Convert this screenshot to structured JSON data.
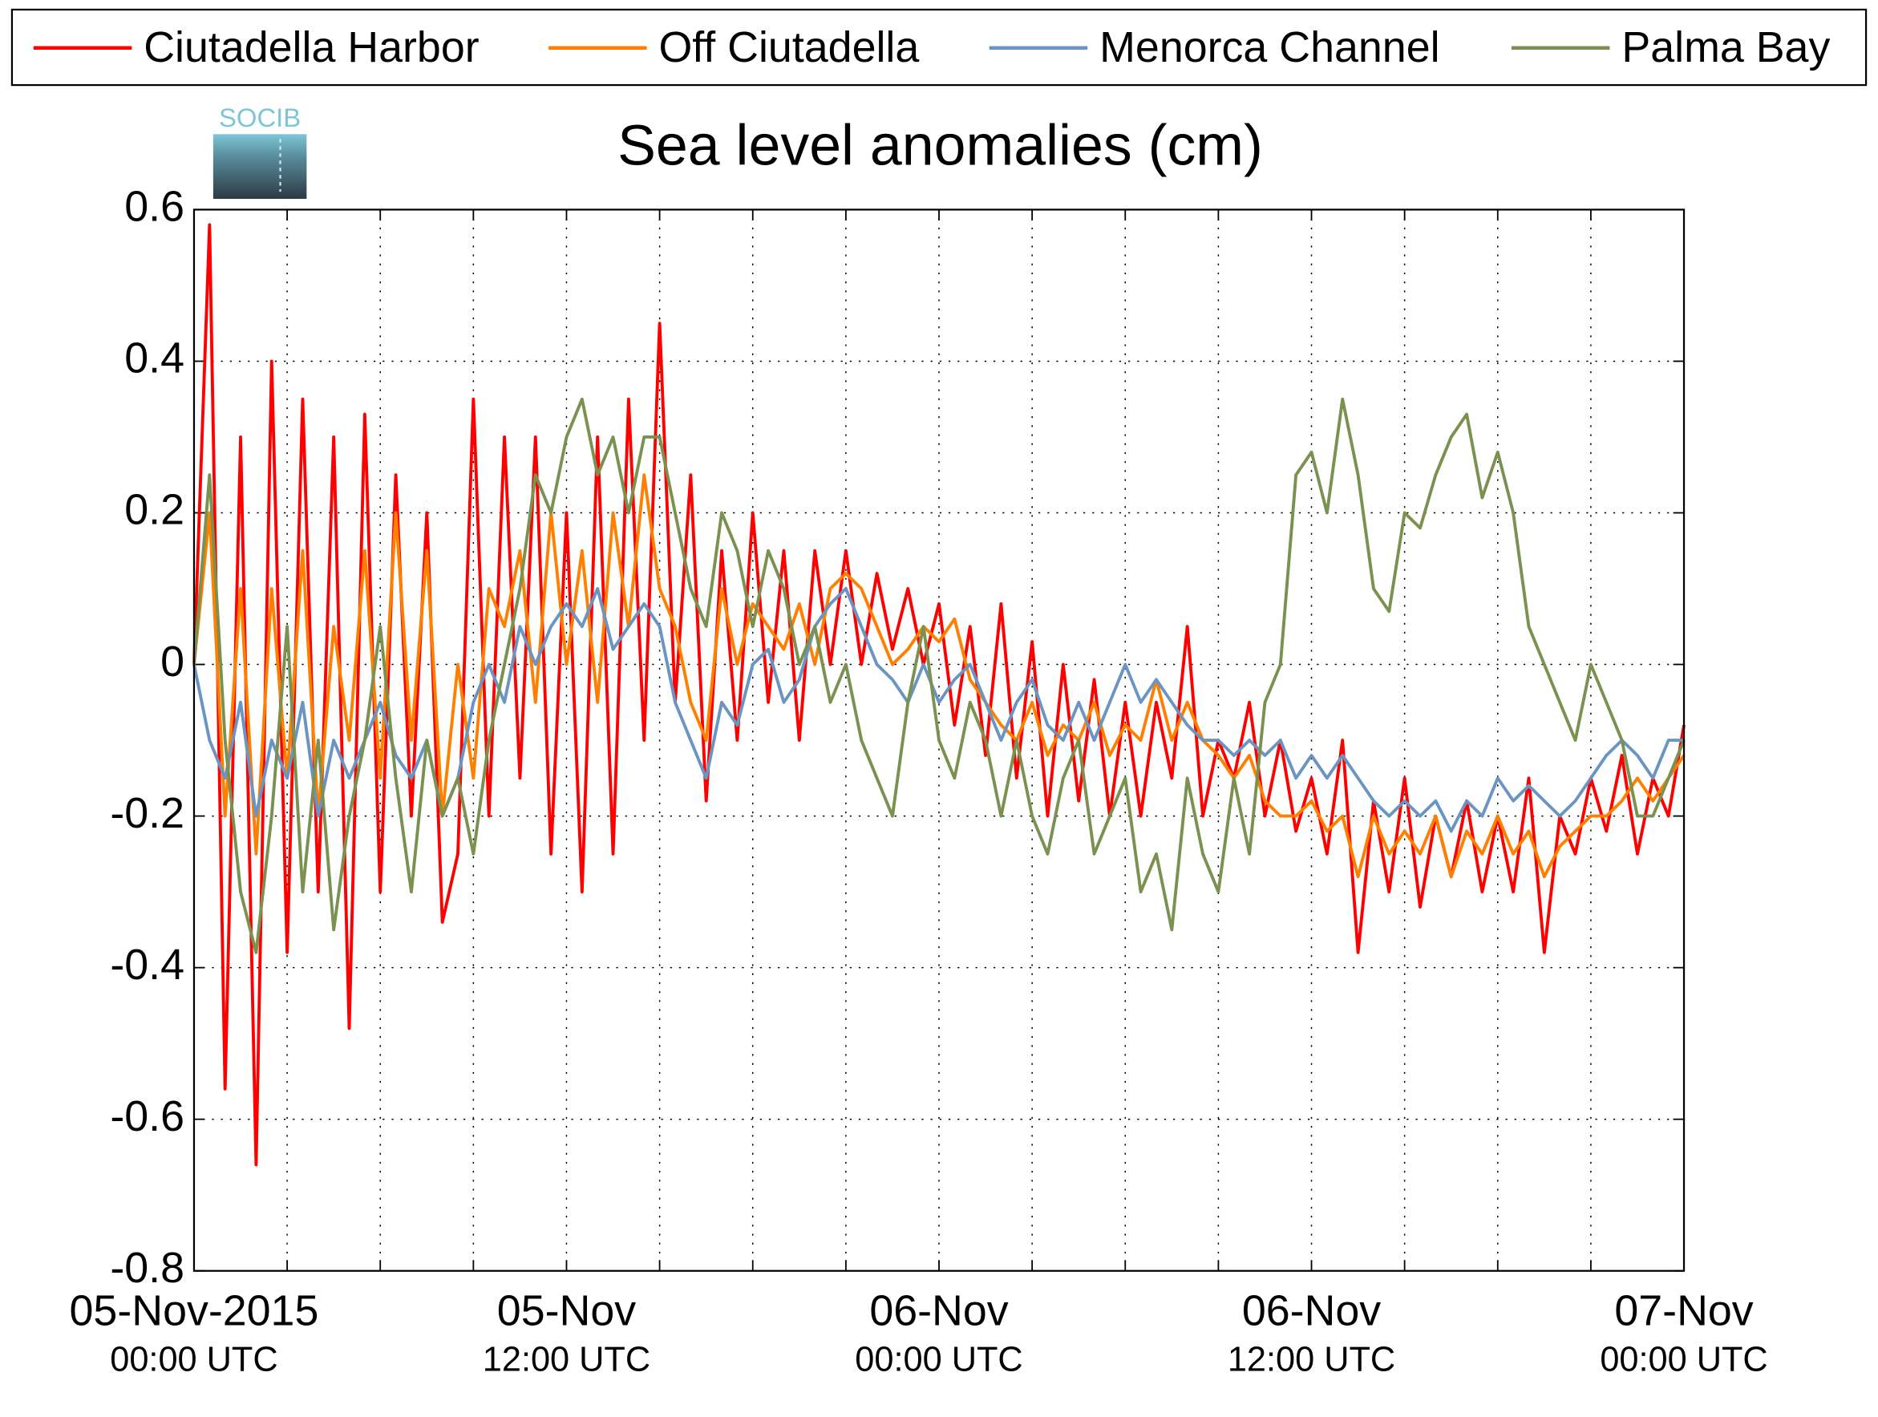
{
  "chart_data": {
    "type": "line",
    "title": "Sea level anomalies (cm)",
    "logo": "SOCIB",
    "legend": "top",
    "grid": true,
    "x": [
      "2015-11-05T00:00",
      "2015-11-05T00:30",
      "2015-11-05T01:00",
      "2015-11-05T01:30",
      "2015-11-05T02:00",
      "2015-11-05T02:30",
      "2015-11-05T03:00",
      "2015-11-05T03:30",
      "2015-11-05T04:00",
      "2015-11-05T04:30",
      "2015-11-05T05:00",
      "2015-11-05T05:30",
      "2015-11-05T06:00",
      "2015-11-05T06:30",
      "2015-11-05T07:00",
      "2015-11-05T07:30",
      "2015-11-05T08:00",
      "2015-11-05T08:30",
      "2015-11-05T09:00",
      "2015-11-05T09:30",
      "2015-11-05T10:00",
      "2015-11-05T10:30",
      "2015-11-05T11:00",
      "2015-11-05T11:30",
      "2015-11-05T12:00",
      "2015-11-05T12:30",
      "2015-11-05T13:00",
      "2015-11-05T13:30",
      "2015-11-05T14:00",
      "2015-11-05T14:30",
      "2015-11-05T15:00",
      "2015-11-05T15:30",
      "2015-11-05T16:00",
      "2015-11-05T16:30",
      "2015-11-05T17:00",
      "2015-11-05T17:30",
      "2015-11-05T18:00",
      "2015-11-05T18:30",
      "2015-11-05T19:00",
      "2015-11-05T19:30",
      "2015-11-05T20:00",
      "2015-11-05T20:30",
      "2015-11-05T21:00",
      "2015-11-05T21:30",
      "2015-11-05T22:00",
      "2015-11-05T22:30",
      "2015-11-05T23:00",
      "2015-11-05T23:30",
      "2015-11-06T00:00",
      "2015-11-06T00:30",
      "2015-11-06T01:00",
      "2015-11-06T01:30",
      "2015-11-06T02:00",
      "2015-11-06T02:30",
      "2015-11-06T03:00",
      "2015-11-06T03:30",
      "2015-11-06T04:00",
      "2015-11-06T04:30",
      "2015-11-06T05:00",
      "2015-11-06T05:30",
      "2015-11-06T06:00",
      "2015-11-06T06:30",
      "2015-11-06T07:00",
      "2015-11-06T07:30",
      "2015-11-06T08:00",
      "2015-11-06T08:30",
      "2015-11-06T09:00",
      "2015-11-06T09:30",
      "2015-11-06T10:00",
      "2015-11-06T10:30",
      "2015-11-06T11:00",
      "2015-11-06T11:30",
      "2015-11-06T12:00",
      "2015-11-06T12:30",
      "2015-11-06T13:00",
      "2015-11-06T13:30",
      "2015-11-06T14:00",
      "2015-11-06T14:30",
      "2015-11-06T15:00",
      "2015-11-06T15:30",
      "2015-11-06T16:00",
      "2015-11-06T16:30",
      "2015-11-06T17:00",
      "2015-11-06T17:30",
      "2015-11-06T18:00",
      "2015-11-06T18:30",
      "2015-11-06T19:00",
      "2015-11-06T19:30",
      "2015-11-06T20:00",
      "2015-11-06T20:30",
      "2015-11-06T21:00",
      "2015-11-06T21:30",
      "2015-11-06T22:00",
      "2015-11-06T22:30",
      "2015-11-06T23:00",
      "2015-11-06T23:30",
      "2015-11-07T00:00"
    ],
    "xlim": [
      "2015-11-05T00:00",
      "2015-11-07T00:00"
    ],
    "xticks": [
      {
        "value": "2015-11-05T00:00",
        "label": "05-Nov-2015",
        "sublabel": "00:00 UTC"
      },
      "2015-11-05T03:00",
      "2015-11-05T06:00",
      "2015-11-05T09:00",
      {
        "value": "2015-11-05T12:00",
        "label": "05-Nov",
        "sublabel": "12:00 UTC"
      },
      "2015-11-05T15:00",
      "2015-11-05T18:00",
      "2015-11-05T21:00",
      {
        "value": "2015-11-06T00:00",
        "label": "06-Nov",
        "sublabel": "00:00 UTC"
      },
      "2015-11-06T03:00",
      "2015-11-06T06:00",
      "2015-11-06T09:00",
      {
        "value": "2015-11-06T12:00",
        "label": "06-Nov",
        "sublabel": "12:00 UTC"
      },
      "2015-11-06T15:00",
      "2015-11-06T18:00",
      "2015-11-06T21:00",
      {
        "value": "2015-11-07T00:00",
        "label": "07-Nov",
        "sublabel": "00:00 UTC"
      }
    ],
    "ylim": [
      -0.8,
      0.6
    ],
    "yticks": [
      -0.8,
      -0.6,
      -0.4,
      -0.2,
      0,
      0.2,
      0.4,
      0.6
    ],
    "series": [
      {
        "name": "Ciutadella Harbor",
        "color": "#ff0000",
        "values": [
          0,
          0.58,
          -0.56,
          0.3,
          -0.66,
          0.4,
          -0.38,
          0.35,
          -0.3,
          0.3,
          -0.48,
          0.33,
          -0.3,
          0.25,
          -0.2,
          0.2,
          -0.34,
          -0.25,
          0.35,
          -0.2,
          0.3,
          -0.15,
          0.3,
          -0.25,
          0.2,
          -0.3,
          0.3,
          -0.25,
          0.35,
          -0.1,
          0.45,
          -0.05,
          0.25,
          -0.18,
          0.15,
          -0.1,
          0.2,
          -0.05,
          0.15,
          -0.1,
          0.15,
          0,
          0.15,
          0,
          0.12,
          0.02,
          0.1,
          0,
          0.08,
          -0.08,
          0.05,
          -0.12,
          0.08,
          -0.15,
          0.03,
          -0.2,
          0,
          -0.18,
          -0.02,
          -0.2,
          -0.05,
          -0.2,
          -0.05,
          -0.15,
          0.05,
          -0.2,
          -0.1,
          -0.15,
          -0.05,
          -0.2,
          -0.1,
          -0.22,
          -0.15,
          -0.25,
          -0.1,
          -0.38,
          -0.18,
          -0.3,
          -0.15,
          -0.32,
          -0.2,
          -0.28,
          -0.18,
          -0.3,
          -0.2,
          -0.3,
          -0.15,
          -0.38,
          -0.2,
          -0.25,
          -0.15,
          -0.22,
          -0.12,
          -0.25,
          -0.15,
          -0.2,
          -0.08
        ]
      },
      {
        "name": "Off Ciutadella",
        "color": "#ff8000",
        "values": [
          0,
          0.2,
          -0.2,
          0.1,
          -0.25,
          0.1,
          -0.15,
          0.15,
          -0.2,
          0.05,
          -0.1,
          0.15,
          -0.15,
          0.2,
          -0.1,
          0.15,
          -0.2,
          0,
          -0.15,
          0.1,
          0.05,
          0.15,
          -0.05,
          0.2,
          0,
          0.15,
          -0.05,
          0.2,
          0.05,
          0.25,
          0.1,
          0.05,
          -0.05,
          -0.1,
          0.1,
          0,
          0.08,
          0.05,
          0.02,
          0.08,
          0,
          0.1,
          0.12,
          0.1,
          0.05,
          0,
          0.02,
          0.05,
          0.03,
          0.06,
          -0.02,
          -0.05,
          -0.08,
          -0.1,
          -0.05,
          -0.12,
          -0.08,
          -0.1,
          -0.05,
          -0.12,
          -0.08,
          -0.1,
          -0.02,
          -0.1,
          -0.05,
          -0.1,
          -0.12,
          -0.15,
          -0.12,
          -0.18,
          -0.2,
          -0.2,
          -0.18,
          -0.22,
          -0.2,
          -0.28,
          -0.2,
          -0.25,
          -0.22,
          -0.25,
          -0.2,
          -0.28,
          -0.22,
          -0.25,
          -0.2,
          -0.25,
          -0.22,
          -0.28,
          -0.24,
          -0.22,
          -0.2,
          -0.2,
          -0.18,
          -0.15,
          -0.18,
          -0.15,
          -0.12
        ]
      },
      {
        "name": "Menorca Channel",
        "color": "#6a95c2",
        "values": [
          0,
          -0.1,
          -0.15,
          -0.05,
          -0.2,
          -0.1,
          -0.15,
          -0.05,
          -0.2,
          -0.1,
          -0.15,
          -0.1,
          -0.05,
          -0.12,
          -0.15,
          -0.1,
          -0.2,
          -0.15,
          -0.05,
          0,
          -0.05,
          0.05,
          0,
          0.05,
          0.08,
          0.05,
          0.1,
          0.02,
          0.05,
          0.08,
          0.05,
          -0.05,
          -0.1,
          -0.15,
          -0.05,
          -0.08,
          0,
          0.02,
          -0.05,
          -0.02,
          0.05,
          0.08,
          0.1,
          0.05,
          0,
          -0.02,
          -0.05,
          0,
          -0.05,
          -0.02,
          0,
          -0.05,
          -0.1,
          -0.05,
          -0.02,
          -0.08,
          -0.1,
          -0.05,
          -0.1,
          -0.05,
          0,
          -0.05,
          -0.02,
          -0.05,
          -0.08,
          -0.1,
          -0.1,
          -0.12,
          -0.1,
          -0.12,
          -0.1,
          -0.15,
          -0.12,
          -0.15,
          -0.12,
          -0.15,
          -0.18,
          -0.2,
          -0.18,
          -0.2,
          -0.18,
          -0.22,
          -0.18,
          -0.2,
          -0.15,
          -0.18,
          -0.16,
          -0.18,
          -0.2,
          -0.18,
          -0.15,
          -0.12,
          -0.1,
          -0.12,
          -0.15,
          -0.1,
          -0.1
        ]
      },
      {
        "name": "Palma Bay",
        "color": "#7a9150",
        "values": [
          0,
          0.25,
          -0.1,
          -0.3,
          -0.38,
          -0.2,
          0.05,
          -0.3,
          -0.1,
          -0.35,
          -0.2,
          -0.1,
          0.05,
          -0.15,
          -0.3,
          -0.1,
          -0.2,
          -0.15,
          -0.25,
          -0.1,
          0,
          0.1,
          0.25,
          0.2,
          0.3,
          0.35,
          0.25,
          0.3,
          0.2,
          0.3,
          0.3,
          0.2,
          0.1,
          0.05,
          0.2,
          0.15,
          0.05,
          0.15,
          0.1,
          0,
          0.05,
          -0.05,
          0,
          -0.1,
          -0.15,
          -0.2,
          -0.05,
          0.05,
          -0.1,
          -0.15,
          -0.05,
          -0.1,
          -0.2,
          -0.1,
          -0.2,
          -0.25,
          -0.15,
          -0.1,
          -0.25,
          -0.2,
          -0.15,
          -0.3,
          -0.25,
          -0.35,
          -0.15,
          -0.25,
          -0.3,
          -0.15,
          -0.25,
          -0.05,
          0,
          0.25,
          0.28,
          0.2,
          0.35,
          0.25,
          0.1,
          0.07,
          0.2,
          0.18,
          0.25,
          0.3,
          0.33,
          0.22,
          0.28,
          0.2,
          0.05,
          0,
          -0.05,
          -0.1,
          0,
          -0.05,
          -0.1,
          -0.2,
          -0.2,
          -0.15,
          -0.1
        ]
      }
    ]
  }
}
